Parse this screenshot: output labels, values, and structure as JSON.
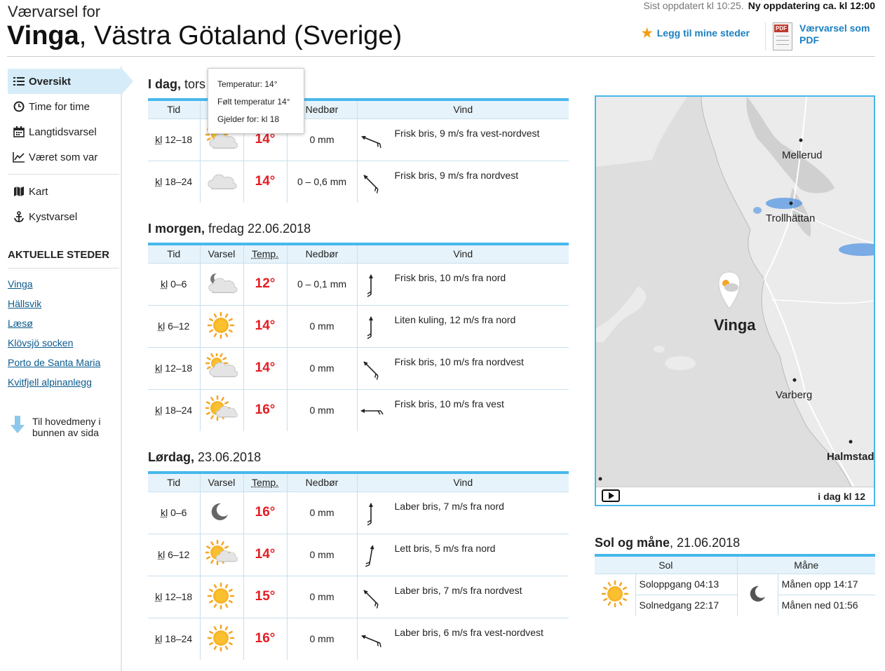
{
  "header": {
    "last_updated": "Sist oppdatert kl 10:25.",
    "next_update": "Ny oppdatering ca. kl 12:00",
    "pre_title": "Værvarsel for",
    "place": "Vinga",
    "region": ", Västra Götaland (Sverige)",
    "add_favorite": "Legg til mine steder",
    "pdf_link": "Værvarsel som PDF",
    "pdf_badge": "PDF"
  },
  "nav": {
    "items": [
      {
        "label": "Oversikt",
        "icon": "list-icon",
        "active": true
      },
      {
        "label": "Time for time",
        "icon": "clock-icon"
      },
      {
        "label": "Langtidsvarsel",
        "icon": "calendar-icon"
      },
      {
        "label": "Været som var",
        "icon": "chart-icon"
      },
      {
        "label": "Kart",
        "icon": "map-icon"
      },
      {
        "label": "Kystvarsel",
        "icon": "anchor-icon"
      }
    ],
    "places_heading": "AKTUELLE STEDER",
    "places": [
      "Vinga",
      "Hällsvik",
      "Læsø",
      "Klövsjö socken",
      "Porto de Santa Maria",
      "Kvitfjell alpinanlegg"
    ],
    "to_main": "Til hovedmeny i bunnen av sida"
  },
  "table_headers": {
    "tid": "Tid",
    "varsel": "Varsel",
    "temp": "Temp.",
    "nedbor": "Nedbør",
    "vind": "Vind"
  },
  "days": [
    {
      "title_bold": "I dag,",
      "title_rest": " tors",
      "rows": [
        {
          "kl": "kl",
          "time": " 12–18",
          "icon": "partly-cloudy-icon",
          "temp": "14°",
          "precip": "0 mm",
          "wind_dir_deg": 292,
          "wind": "Frisk bris, 9 m/s fra vest-nordvest"
        },
        {
          "kl": "kl",
          "time": " 18–24",
          "icon": "cloudy-icon",
          "temp": "14°",
          "precip": "0 – 0,6 mm",
          "wind_dir_deg": 315,
          "wind": "Frisk bris, 9 m/s fra nordvest"
        }
      ]
    },
    {
      "title_bold": "I morgen,",
      "title_rest": " fredag 22.06.2018",
      "rows": [
        {
          "kl": "kl",
          "time": " 0–6",
          "icon": "partly-cloudy-night-icon",
          "temp": "12°",
          "precip": "0 – 0,1 mm",
          "wind_dir_deg": 0,
          "wind": "Frisk bris, 10 m/s fra nord"
        },
        {
          "kl": "kl",
          "time": " 6–12",
          "icon": "sun-icon",
          "temp": "14°",
          "precip": "0 mm",
          "wind_dir_deg": 0,
          "wind": "Liten kuling, 12 m/s fra nord"
        },
        {
          "kl": "kl",
          "time": " 12–18",
          "icon": "partly-cloudy-icon",
          "temp": "14°",
          "precip": "0 mm",
          "wind_dir_deg": 315,
          "wind": "Frisk bris, 10 m/s fra nordvest"
        },
        {
          "kl": "kl",
          "time": " 18–24",
          "icon": "fair-icon",
          "temp": "16°",
          "precip": "0 mm",
          "wind_dir_deg": 270,
          "wind": "Frisk bris, 10 m/s fra vest"
        }
      ]
    },
    {
      "title_bold": "Lørdag,",
      "title_rest": " 23.06.2018",
      "rows": [
        {
          "kl": "kl",
          "time": " 0–6",
          "icon": "moon-icon",
          "temp": "16°",
          "precip": "0 mm",
          "wind_dir_deg": 0,
          "wind": "Laber bris, 7 m/s fra nord"
        },
        {
          "kl": "kl",
          "time": " 6–12",
          "icon": "fair-icon",
          "temp": "14°",
          "precip": "0 mm",
          "wind_dir_deg": 10,
          "wind": "Lett bris, 5 m/s fra nord"
        },
        {
          "kl": "kl",
          "time": " 12–18",
          "icon": "sun-icon",
          "temp": "15°",
          "precip": "0 mm",
          "wind_dir_deg": 315,
          "wind": "Laber bris, 7 m/s fra nordvest"
        },
        {
          "kl": "kl",
          "time": " 18–24",
          "icon": "sun-icon",
          "temp": "16°",
          "precip": "0 mm",
          "wind_dir_deg": 292,
          "wind": "Laber bris, 6 m/s fra vest-nordvest"
        }
      ]
    }
  ],
  "tooltip": {
    "line1": "Temperatur: 14°",
    "line2": "Følt temperatur 14°",
    "line3": "Gjelder for: kl 18"
  },
  "map": {
    "labels": [
      "Mellerud",
      "Trollhättan",
      "Vinga",
      "Varberg",
      "Halmstad"
    ],
    "time": "i dag kl 12"
  },
  "sun_moon": {
    "title_bold": "Sol og måne",
    "title_rest": ", 21.06.2018",
    "sun_header": "Sol",
    "moon_header": "Måne",
    "sunrise": "Soloppgang 04:13",
    "sunset": "Solnedgang 22:17",
    "moonrise": "Månen opp 14:17",
    "moonset": "Månen ned 01:56"
  },
  "colors": {
    "accent": "#47b8ec",
    "temp_warm": "#e31e25",
    "link": "#0a5a8c",
    "header_bg": "#e6f3fa"
  }
}
